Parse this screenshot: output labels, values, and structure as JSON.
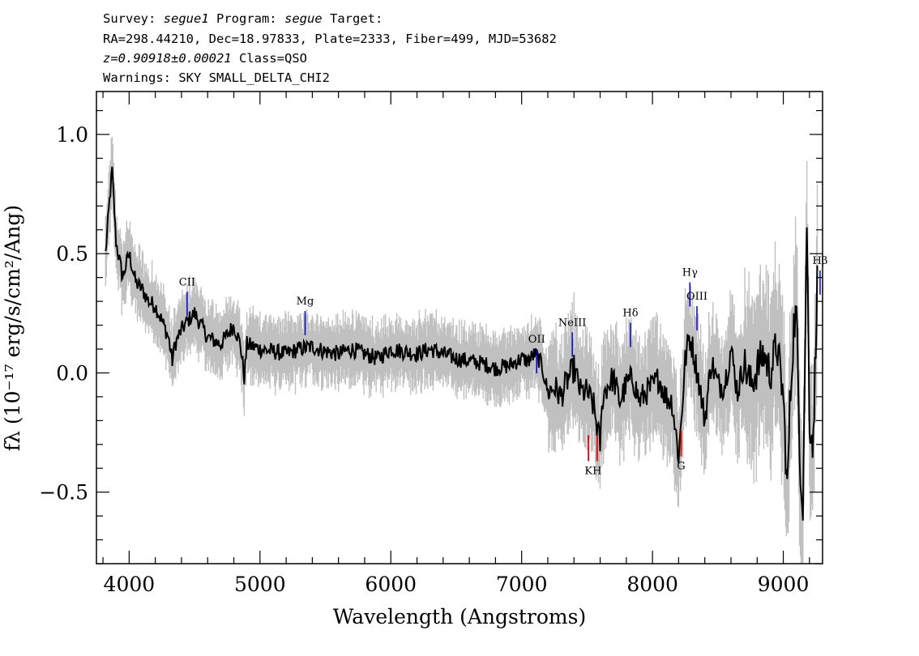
{
  "header": {
    "line1": {
      "survey_label": "Survey: ",
      "survey": "segue1",
      "program_label": " Program: ",
      "program": "segue",
      "target_label": " Target:"
    },
    "line2": "RA=298.44210, Dec=18.97833, Plate=2333, Fiber=499, MJD=53682",
    "line3": {
      "z": "z=0.90918±0.00021",
      "class": " Class=QSO"
    },
    "line4": "Warnings: SKY SMALL_DELTA_CHI2"
  },
  "chart_data": {
    "type": "line",
    "xlabel": "Wavelength (Angstroms)",
    "ylabel": "fλ (10⁻¹⁷ erg/s/cm²/Ang)",
    "xlim": [
      3750,
      9300
    ],
    "ylim": [
      -0.8,
      1.18
    ],
    "xticks": [
      4000,
      5000,
      6000,
      7000,
      8000,
      9000
    ],
    "xtick_labels": [
      "4000",
      "5000",
      "6000",
      "7000",
      "8000",
      "9000"
    ],
    "yticks": [
      -0.5,
      0.0,
      0.5,
      1.0
    ],
    "ytick_labels": [
      "−0.5",
      "0.0",
      "0.5",
      "1.0"
    ],
    "colors": {
      "flux": "#000000",
      "error_band": "#c0c0c0",
      "emission": "#0000cc",
      "absorption": "#dd0000"
    },
    "series": [
      {
        "role": "flux",
        "x": [
          3820,
          3850,
          3870,
          3900,
          3950,
          4000,
          4050,
          4100,
          4150,
          4200,
          4250,
          4300,
          4330,
          4350,
          4400,
          4450,
          4500,
          4550,
          4600,
          4700,
          4800,
          4850,
          4880,
          4900,
          5000,
          5100,
          5200,
          5300,
          5400,
          5500,
          5600,
          5700,
          5800,
          5900,
          6000,
          6100,
          6200,
          6300,
          6400,
          6500,
          6600,
          6700,
          6800,
          6900,
          7000,
          7050,
          7100,
          7150,
          7200,
          7250,
          7300,
          7350,
          7400,
          7450,
          7500,
          7550,
          7600,
          7620,
          7650,
          7700,
          7750,
          7800,
          7850,
          7900,
          7950,
          8000,
          8050,
          8100,
          8150,
          8200,
          8220,
          8250,
          8280,
          8300,
          8350,
          8400,
          8450,
          8500,
          8550,
          8600,
          8650,
          8700,
          8750,
          8800,
          8850,
          8900,
          8950,
          9000,
          9030,
          9050,
          9080,
          9100,
          9130,
          9150,
          9180,
          9200,
          9230,
          9260
        ],
        "y": [
          0.5,
          0.72,
          0.85,
          0.55,
          0.4,
          0.5,
          0.38,
          0.35,
          0.3,
          0.28,
          0.22,
          0.15,
          0.05,
          0.12,
          0.18,
          0.22,
          0.25,
          0.2,
          0.15,
          0.12,
          0.2,
          0.12,
          -0.02,
          0.12,
          0.1,
          0.09,
          0.08,
          0.1,
          0.11,
          0.09,
          0.08,
          0.1,
          0.08,
          0.06,
          0.1,
          0.09,
          0.08,
          0.1,
          0.08,
          0.06,
          0.05,
          0.04,
          0.02,
          0.03,
          0.06,
          0.05,
          0.08,
          0.04,
          -0.08,
          -0.06,
          -0.1,
          -0.03,
          0.02,
          -0.08,
          -0.08,
          -0.14,
          -0.3,
          -0.1,
          -0.06,
          -0.02,
          -0.12,
          -0.05,
          -0.02,
          -0.12,
          -0.08,
          -0.06,
          -0.02,
          -0.1,
          -0.12,
          -0.35,
          -0.2,
          0.05,
          0.15,
          0.12,
          -0.02,
          -0.2,
          0.05,
          -0.05,
          -0.05,
          0.1,
          -0.08,
          0.04,
          -0.05,
          0.02,
          0.08,
          0.0,
          0.12,
          -0.1,
          -0.5,
          -0.15,
          0.2,
          0.25,
          -0.4,
          -0.55,
          0.65,
          -0.2,
          -0.3,
          0.45
        ]
      }
    ],
    "emission_lines": [
      {
        "label": "CII",
        "x": 4443,
        "y": 0.34
      },
      {
        "label": "Mg",
        "x": 5345,
        "y": 0.26
      },
      {
        "label": "OII",
        "x": 7115,
        "y": 0.1
      },
      {
        "label": "NeIII",
        "x": 7387,
        "y": 0.17
      },
      {
        "label": "Hδ",
        "x": 7832,
        "y": 0.21
      },
      {
        "label": "Hγ",
        "x": 8286,
        "y": 0.38
      },
      {
        "label": "OIII",
        "x": 8340,
        "y": 0.28
      },
      {
        "label": "Hβ",
        "x": 9281,
        "y": 0.43
      }
    ],
    "absorption_lines": [
      {
        "label": "K",
        "x": 7511,
        "y": -0.37
      },
      {
        "label": "H",
        "x": 7577,
        "y": -0.37
      },
      {
        "label": "G",
        "x": 8219,
        "y": -0.35
      }
    ]
  }
}
